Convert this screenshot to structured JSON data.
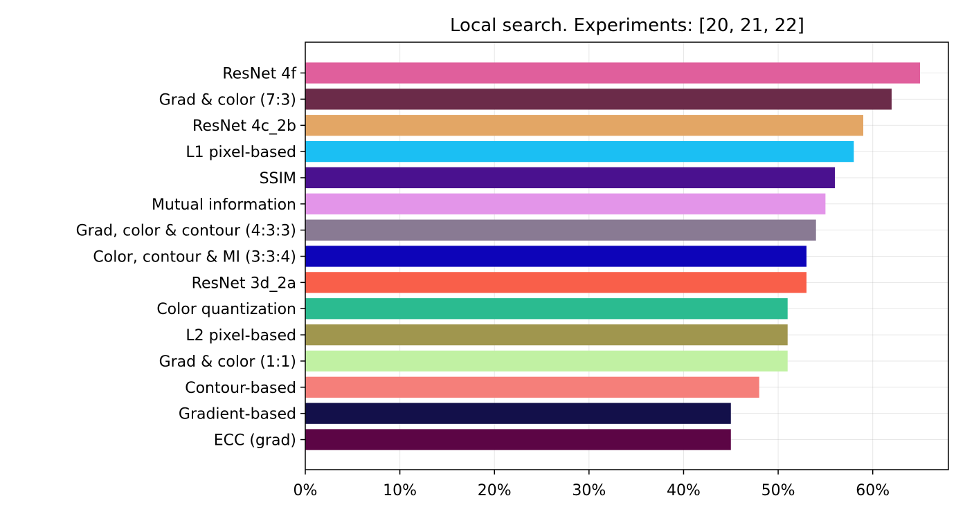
{
  "chart_data": {
    "type": "bar",
    "orientation": "horizontal",
    "title": "Local search. Experiments: [20, 21, 22]",
    "xlabel": "",
    "ylabel": "",
    "xlim": [
      0,
      68
    ],
    "x_tick_values": [
      0,
      10,
      20,
      30,
      40,
      50,
      60
    ],
    "x_tick_labels": [
      "0%",
      "10%",
      "20%",
      "30%",
      "40%",
      "50%",
      "60%"
    ],
    "grid": true,
    "categories": [
      "ResNet 4f",
      "Grad & color (7:3)",
      "ResNet 4c_2b",
      "L1 pixel-based",
      "SSIM",
      "Mutual information",
      "Grad, color & contour (4:3:3)",
      "Color, contour & MI (3:3:4)",
      "ResNet 3d_2a",
      "Color quantization",
      "L2 pixel-based",
      "Grad & color (1:1)",
      "Contour-based",
      "Gradient-based",
      "ECC (grad)"
    ],
    "values": [
      65,
      62,
      59,
      58,
      56,
      55,
      54,
      53,
      53,
      51,
      51,
      51,
      48,
      45,
      45
    ],
    "colors": [
      "#e05f9c",
      "#6b2b49",
      "#e3a665",
      "#1bbff3",
      "#4a118f",
      "#e395e9",
      "#897a93",
      "#0d04b9",
      "#f95f4a",
      "#2bbb90",
      "#a0964e",
      "#c1f1a3",
      "#f57f7a",
      "#13104a",
      "#5c0545"
    ]
  }
}
